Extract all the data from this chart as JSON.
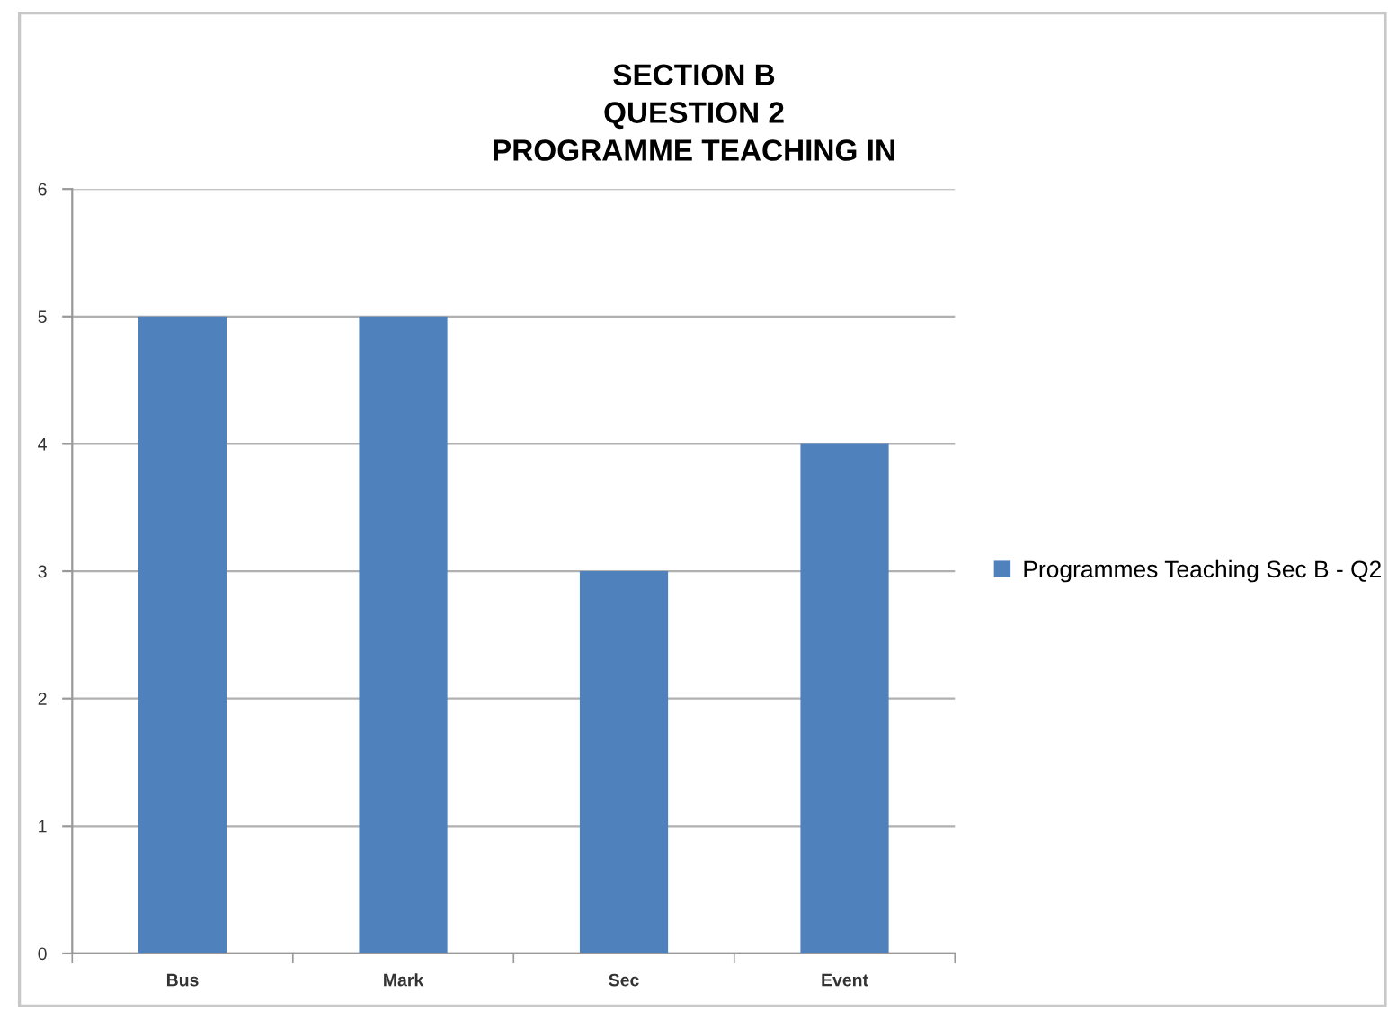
{
  "chart_data": {
    "type": "bar",
    "title": "SECTION B\nQUESTION 2\nPROGRAMME TEACHING IN",
    "categories": [
      "Bus",
      "Mark",
      "Sec",
      "Event"
    ],
    "series": [
      {
        "name": "Programmes Teaching Sec B - Q2",
        "color": "#4f81bd",
        "values": [
          5,
          5,
          3,
          4
        ]
      }
    ],
    "ylim": [
      0,
      6
    ],
    "yticks": [
      0,
      1,
      2,
      3,
      4,
      5,
      6
    ],
    "grid": "y",
    "legend": "right"
  }
}
